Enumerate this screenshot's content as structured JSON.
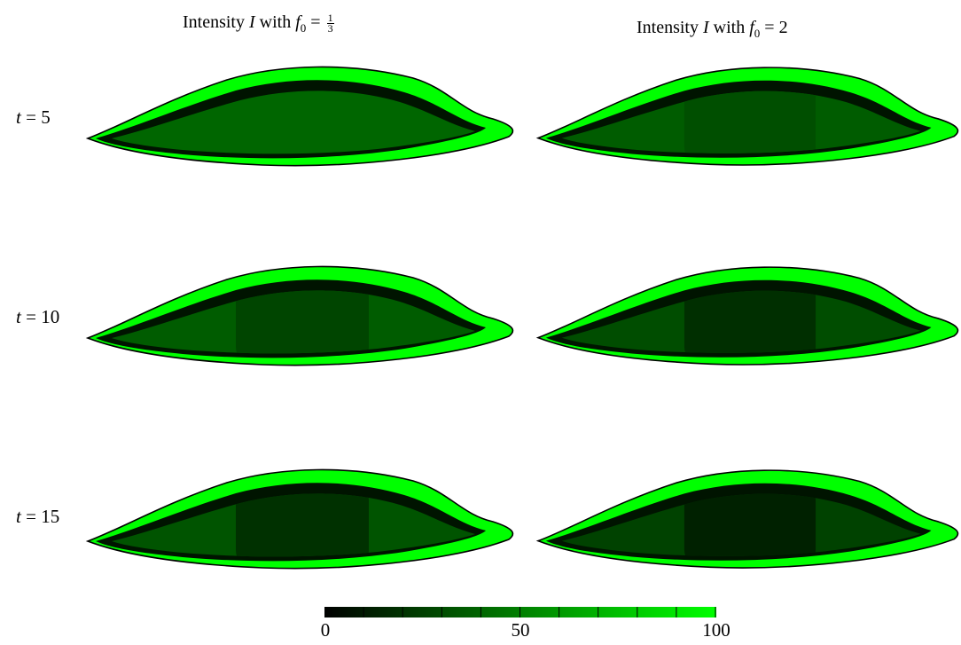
{
  "columns": [
    {
      "prefix": "Intensity",
      "var": "I",
      "mid": "with",
      "sym": "f",
      "sub": "0",
      "eq": "=",
      "num": "1",
      "den": "3",
      "value": ""
    },
    {
      "prefix": "Intensity",
      "var": "I",
      "mid": "with",
      "sym": "f",
      "sub": "0",
      "eq": "=",
      "num": "",
      "den": "",
      "value": "2"
    }
  ],
  "rows": [
    {
      "var": "t",
      "eq": "=",
      "value": "5"
    },
    {
      "var": "t",
      "eq": "=",
      "value": "10"
    },
    {
      "var": "t",
      "eq": "=",
      "value": "15"
    }
  ],
  "panels": [
    {
      "row": 0,
      "col": 0,
      "core_level": 40,
      "dark_center_level": 0
    },
    {
      "row": 0,
      "col": 1,
      "core_level": 36,
      "dark_center_level": 0.25
    },
    {
      "row": 1,
      "col": 0,
      "core_level": 36,
      "dark_center_level": 0.45
    },
    {
      "row": 1,
      "col": 1,
      "core_level": 30,
      "dark_center_level": 0.7
    },
    {
      "row": 2,
      "col": 0,
      "core_level": 33,
      "dark_center_level": 0.75
    },
    {
      "row": 2,
      "col": 1,
      "core_level": 26,
      "dark_center_level": 0.9
    }
  ],
  "colorbar": {
    "min": 0,
    "max": 100,
    "ticks": [
      0,
      50,
      100
    ],
    "color_low": "#000000",
    "color_high": "#00ff00"
  }
}
